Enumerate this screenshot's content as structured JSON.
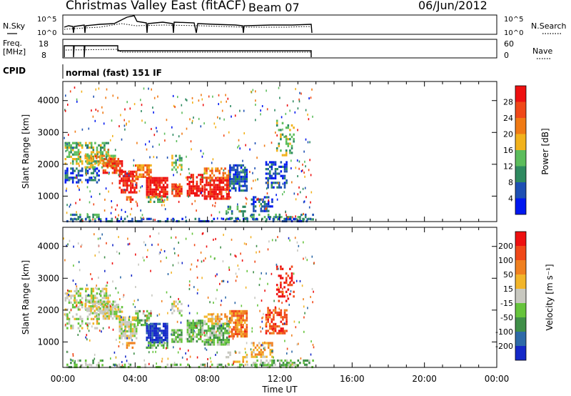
{
  "header": {
    "station": "Christmas Valley East (fitACF)",
    "beam": "Beam 07",
    "date": "06/Jun/2012",
    "mode": "normal (fast) 151 IF"
  },
  "strip_labels": {
    "nsky": "N.Sky",
    "nsky_hi": "10^5",
    "nsky_lo": "10^0",
    "nsearch": "N.Search",
    "nsearch_hi": "10^5",
    "nsearch_lo": "10^0",
    "freq_line1": "Freq.",
    "freq_line2": "[MHz]",
    "freq_hi": "18",
    "freq_lo": "8",
    "nave": "Nave",
    "nave_hi": "60",
    "nave_lo": "0",
    "cpid": "CPID"
  },
  "chart_data": [
    {
      "type": "heatmap",
      "name": "power",
      "xlabel": "",
      "ylabel": "Slant Range [km]",
      "yticks": [
        "1000",
        "2000",
        "3000",
        "4000"
      ],
      "ylim": [
        200,
        4600
      ],
      "xlim_hours": [
        0,
        24
      ],
      "colorbar_label": "Power [dB]",
      "colorbar_ticks": [
        "4",
        "8",
        "12",
        "16",
        "20",
        "24",
        "28"
      ],
      "colors": [
        "#0018f0",
        "#1e50b4",
        "#2e8a60",
        "#5cbd5c",
        "#f2b21c",
        "#f07a14",
        "#f04818",
        "#ee1010"
      ],
      "data_end_hour": 13.9
    },
    {
      "type": "heatmap",
      "name": "velocity",
      "xlabel": "Time UT",
      "ylabel": "Slant Range [km]",
      "yticks": [
        "1000",
        "2000",
        "3000",
        "4000"
      ],
      "ylim": [
        200,
        4600
      ],
      "xlim_hours": [
        0,
        24
      ],
      "xticks": [
        "00:00",
        "04:00",
        "08:00",
        "12:00",
        "16:00",
        "20:00",
        "00:00"
      ],
      "colorbar_label": "Velocity [m s⁻¹]",
      "colorbar_ticks": [
        "200",
        "100",
        "50",
        "15",
        "-15",
        "-50",
        "-100",
        "-200"
      ],
      "colors": [
        "#1428c8",
        "#2e6aa8",
        "#3f8f48",
        "#66c43c",
        "#c8c8c0",
        "#f2b52a",
        "#f08020",
        "#f04818",
        "#ee1010"
      ],
      "data_end_hour": 13.9
    }
  ]
}
